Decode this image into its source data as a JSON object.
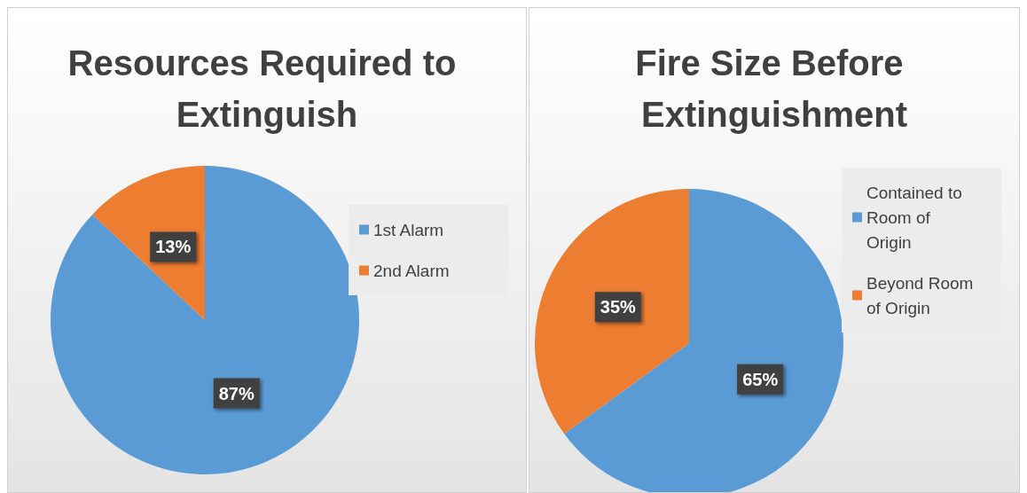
{
  "chart_data": [
    {
      "type": "pie",
      "title": "Resources Required to Extinguish",
      "categories": [
        "1st Alarm",
        "2nd Alarm"
      ],
      "values": [
        87,
        13
      ],
      "colors": [
        "#5b9bd5",
        "#ed7d31"
      ],
      "value_labels": [
        "87%",
        "13%"
      ],
      "legend": "right"
    },
    {
      "type": "pie",
      "title": "Fire Size Before Extinguishment",
      "categories": [
        "Contained to Room of Origin",
        "Beyond Room of Origin"
      ],
      "values": [
        65,
        35
      ],
      "colors": [
        "#5b9bd5",
        "#ed7d31"
      ],
      "value_labels": [
        "65%",
        "35%"
      ],
      "legend": "right"
    }
  ]
}
